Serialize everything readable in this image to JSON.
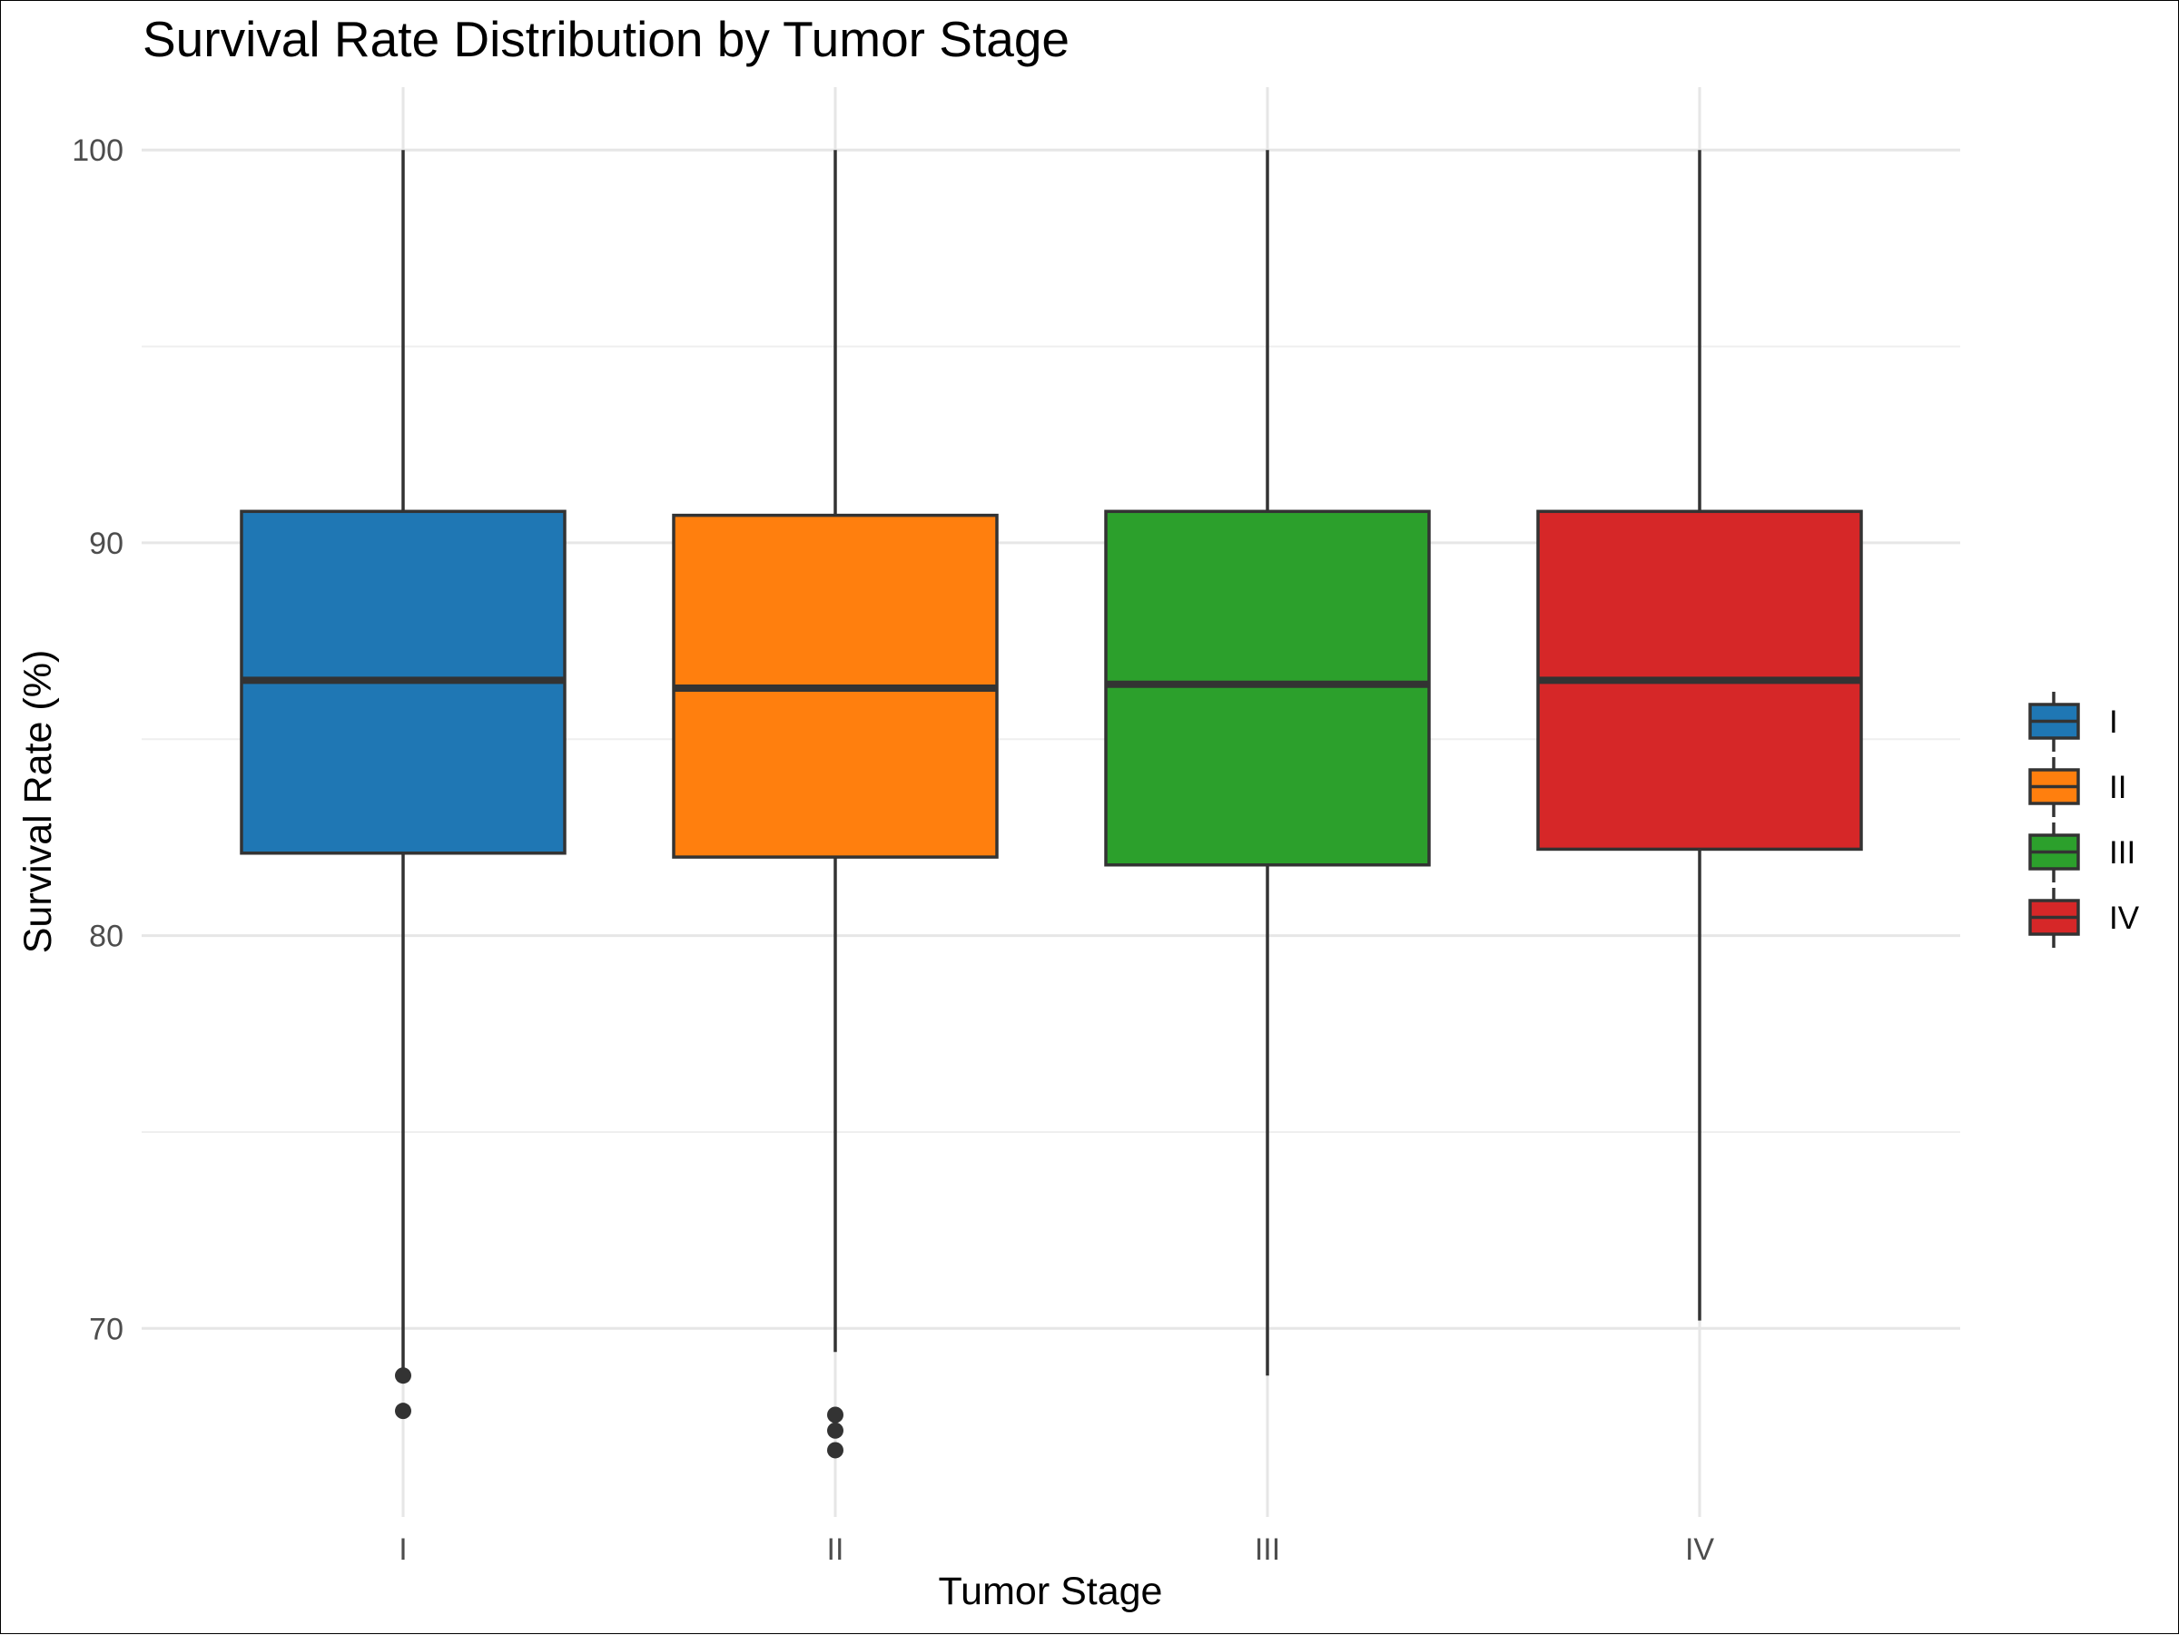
{
  "chart_data": {
    "type": "box",
    "title": "Survival Rate Distribution by Tumor Stage",
    "xlabel": "Tumor Stage",
    "ylabel": "Survival Rate (%)",
    "ylim": [
      65.2,
      101.6
    ],
    "y_ticks": [
      70,
      80,
      90,
      100
    ],
    "y_minor_ticks": [
      75,
      85,
      95
    ],
    "grid": true,
    "legend_position": "right",
    "categories": [
      "I",
      "II",
      "III",
      "IV"
    ],
    "series": [
      {
        "name": "I",
        "color": "#1f77b4",
        "whisker_low": 69.0,
        "q1": 82.1,
        "median": 86.5,
        "q3": 90.8,
        "whisker_high": 100.0,
        "outliers": [
          68.8,
          67.9
        ]
      },
      {
        "name": "II",
        "color": "#ff7f0e",
        "whisker_low": 69.4,
        "q1": 82.0,
        "median": 86.3,
        "q3": 90.7,
        "whisker_high": 100.0,
        "outliers": [
          67.8,
          67.4,
          66.9
        ]
      },
      {
        "name": "III",
        "color": "#2ca02c",
        "whisker_low": 68.8,
        "q1": 81.8,
        "median": 86.4,
        "q3": 90.8,
        "whisker_high": 100.0,
        "outliers": []
      },
      {
        "name": "IV",
        "color": "#d62728",
        "whisker_low": 70.2,
        "q1": 82.2,
        "median": 86.5,
        "q3": 90.8,
        "whisker_high": 100.0,
        "outliers": []
      }
    ]
  }
}
